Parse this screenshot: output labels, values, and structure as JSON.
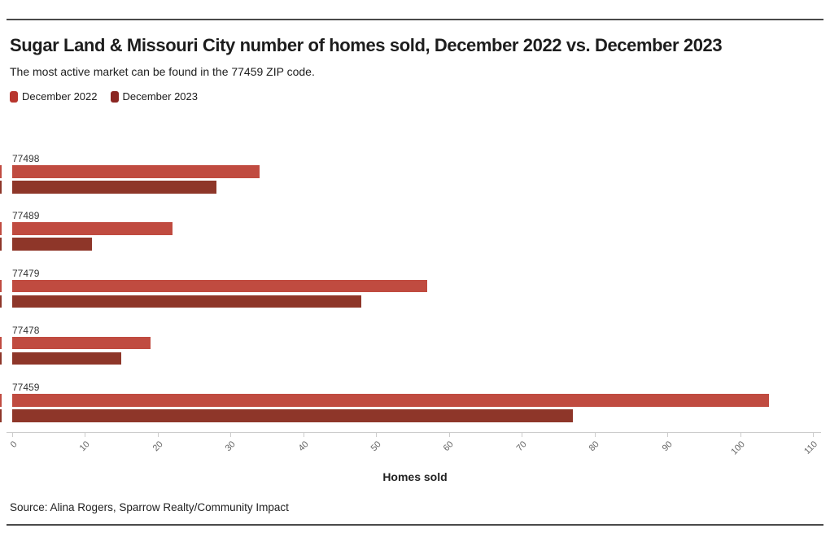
{
  "page": {
    "title": "Sugar Land & Missouri City number of homes sold, December 2022 vs. December 2023",
    "subtitle": "The most active market can be found in the 77459 ZIP code.",
    "source": "Source: Alina Rogers, Sparrow Realty/Community Impact"
  },
  "legend": [
    {
      "label": "December 2022",
      "color": "#b8362e"
    },
    {
      "label": "December 2023",
      "color": "#8b2622"
    }
  ],
  "chart_data": {
    "type": "bar",
    "orientation": "horizontal",
    "title": "Sugar Land & Missouri City number of homes sold, December 2022 vs. December 2023",
    "subtitle": "The most active market can be found in the 77459 ZIP code.",
    "categories": [
      "77498",
      "77489",
      "77479",
      "77478",
      "77459"
    ],
    "series": [
      {
        "name": "December 2022",
        "color": "#c04b40",
        "values": [
          34,
          22,
          57,
          19,
          104
        ]
      },
      {
        "name": "December 2023",
        "color": "#8e3629",
        "values": [
          28,
          11,
          48,
          15,
          77
        ]
      }
    ],
    "xlabel": "Homes sold",
    "ylabel": "",
    "xlim": [
      0,
      110
    ],
    "xticks": [
      0,
      10,
      20,
      30,
      40,
      50,
      60,
      70,
      80,
      90,
      100,
      110
    ],
    "grid": false,
    "legend_position": "top-left"
  },
  "colors": {
    "rule": "#4a4a4a",
    "axis": "#cccccc",
    "tick_label": "#666666",
    "text": "#1d1d1d"
  }
}
